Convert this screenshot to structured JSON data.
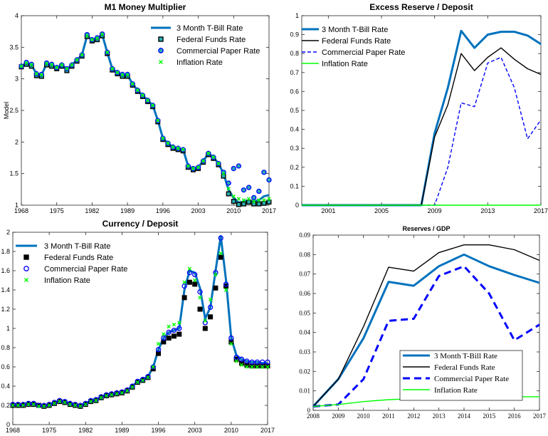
{
  "colors": {
    "tbill": "#0072BD",
    "fedfunds": "#000000",
    "cp": "#0000FF",
    "inflation": "#00FF00",
    "marker_face": "#2AAFB0"
  },
  "chart_data": [
    {
      "id": "m1",
      "type": "line",
      "title": "M1 Money Multiplier",
      "ylabel": "Model",
      "xlim": [
        1968,
        2017
      ],
      "ylim": [
        1,
        4
      ],
      "xticks": [
        1968,
        1975,
        1982,
        1989,
        1996,
        2003,
        2010,
        2017
      ],
      "yticks": [
        1,
        1.5,
        2,
        2.5,
        3,
        3.5,
        4
      ],
      "legend": {
        "position": "top-right",
        "style": "box-less"
      },
      "x": [
        1968,
        1969,
        1970,
        1971,
        1972,
        1973,
        1974,
        1975,
        1976,
        1977,
        1978,
        1979,
        1980,
        1981,
        1982,
        1983,
        1984,
        1985,
        1986,
        1987,
        1988,
        1989,
        1990,
        1991,
        1992,
        1993,
        1994,
        1995,
        1996,
        1997,
        1998,
        1999,
        2000,
        2001,
        2002,
        2003,
        2004,
        2005,
        2006,
        2007,
        2008,
        2009,
        2010,
        2011,
        2012,
        2013,
        2014,
        2015,
        2016,
        2017
      ],
      "series": [
        {
          "name": "3 Month T-Bill Rate",
          "style": "line",
          "color_key": "tbill",
          "values": [
            3.2,
            3.25,
            3.22,
            3.08,
            3.06,
            3.24,
            3.22,
            3.18,
            3.22,
            3.16,
            3.22,
            3.3,
            3.38,
            3.68,
            3.62,
            3.64,
            3.7,
            3.42,
            3.16,
            3.1,
            3.06,
            3.06,
            2.92,
            2.82,
            2.74,
            2.66,
            2.58,
            2.34,
            2.06,
            1.98,
            1.92,
            1.9,
            1.88,
            1.62,
            1.58,
            1.6,
            1.7,
            1.82,
            1.76,
            1.66,
            1.5,
            1.24,
            1.12,
            1.04,
            1.06,
            1.08,
            1.06,
            1.08,
            1.14,
            1.16
          ]
        },
        {
          "name": "Federal Funds Rate",
          "style": "square",
          "color_key": "fedfunds",
          "values": [
            3.19,
            3.23,
            3.2,
            3.05,
            3.04,
            3.22,
            3.2,
            3.16,
            3.2,
            3.13,
            3.2,
            3.28,
            3.36,
            3.67,
            3.6,
            3.62,
            3.68,
            3.4,
            3.14,
            3.08,
            3.04,
            3.04,
            2.9,
            2.8,
            2.72,
            2.64,
            2.56,
            2.32,
            2.04,
            1.96,
            1.9,
            1.88,
            1.86,
            1.6,
            1.56,
            1.58,
            1.68,
            1.8,
            1.74,
            1.64,
            1.46,
            1.18,
            1.06,
            1.01,
            1.02,
            1.05,
            1.02,
            1.02,
            1.03,
            1.05
          ]
        },
        {
          "name": "Commercial Paper Rate",
          "style": "circle",
          "color_key": "cp",
          "values": [
            3.2,
            3.26,
            3.23,
            3.08,
            3.07,
            3.25,
            3.23,
            3.18,
            3.22,
            3.16,
            3.22,
            3.3,
            3.38,
            3.7,
            3.62,
            3.65,
            3.71,
            3.42,
            3.16,
            3.1,
            3.07,
            3.07,
            2.92,
            2.82,
            2.74,
            2.66,
            2.58,
            2.34,
            2.06,
            1.98,
            1.92,
            1.9,
            1.88,
            1.62,
            1.58,
            1.6,
            1.7,
            1.82,
            1.76,
            1.66,
            1.52,
            1.35,
            1.58,
            1.62,
            1.24,
            1.28,
            1.12,
            1.22,
            1.52,
            1.4
          ]
        },
        {
          "name": "Inflation Rate",
          "style": "x",
          "color_key": "inflation",
          "values": [
            3.2,
            3.25,
            3.22,
            3.08,
            3.06,
            3.24,
            3.22,
            3.18,
            3.22,
            3.16,
            3.22,
            3.3,
            3.38,
            3.68,
            3.62,
            3.64,
            3.7,
            3.42,
            3.16,
            3.1,
            3.06,
            3.06,
            2.92,
            2.82,
            2.74,
            2.66,
            2.58,
            2.34,
            2.06,
            1.98,
            1.92,
            1.9,
            1.88,
            1.62,
            1.58,
            1.6,
            1.7,
            1.82,
            1.76,
            1.66,
            1.5,
            1.26,
            1.14,
            1.1,
            1.08,
            1.1,
            1.06,
            1.08,
            1.08,
            1.1
          ]
        }
      ]
    },
    {
      "id": "er",
      "type": "line",
      "title": "Excess Reserve / Deposit",
      "ylabel": "",
      "xlim": [
        1999,
        2017
      ],
      "ylim": [
        0,
        1
      ],
      "xticks": [
        2001,
        2005,
        2009,
        2013,
        2017
      ],
      "yticks": [
        0,
        0.1,
        0.2,
        0.3,
        0.4,
        0.5,
        0.6,
        0.7,
        0.8,
        0.9,
        1
      ],
      "legend": {
        "position": "top-left",
        "style": "box-less"
      },
      "x": [
        1999,
        2000,
        2001,
        2002,
        2003,
        2004,
        2005,
        2006,
        2007,
        2008,
        2009,
        2010,
        2011,
        2012,
        2013,
        2014,
        2015,
        2016,
        2017
      ],
      "series": [
        {
          "name": "3 Month T-Bill Rate",
          "style": "line-thick",
          "color_key": "tbill",
          "values": [
            0,
            0,
            0,
            0,
            0,
            0,
            0,
            0,
            0,
            0,
            0.38,
            0.62,
            0.92,
            0.83,
            0.9,
            0.915,
            0.915,
            0.895,
            0.85
          ]
        },
        {
          "name": "Federal Funds Rate",
          "style": "line",
          "color_key": "fedfunds",
          "values": [
            0,
            0,
            0,
            0,
            0,
            0,
            0,
            0,
            0,
            0,
            0.36,
            0.53,
            0.8,
            0.71,
            0.78,
            0.83,
            0.77,
            0.72,
            0.69
          ]
        },
        {
          "name": "Commercial Paper Rate",
          "style": "dashed",
          "color_key": "cp",
          "values": [
            0,
            0,
            0,
            0,
            0,
            0,
            0,
            0,
            0,
            0,
            0,
            0.2,
            0.54,
            0.52,
            0.75,
            0.78,
            0.62,
            0.35,
            0.45
          ]
        },
        {
          "name": "Inflation Rate",
          "style": "line",
          "color_key": "inflation",
          "values": [
            0,
            0,
            0,
            0,
            0,
            0,
            0,
            0,
            0,
            0,
            0,
            0,
            0,
            0,
            0,
            0,
            0,
            0,
            0
          ]
        }
      ]
    },
    {
      "id": "cd",
      "type": "line",
      "title": "Currency / Deposit",
      "ylabel": "",
      "xlim": [
        1968,
        2017
      ],
      "ylim": [
        0,
        2
      ],
      "xticks": [
        1968,
        1975,
        1982,
        1989,
        1996,
        2003,
        2010,
        2017
      ],
      "yticks": [
        0,
        0.2,
        0.4,
        0.6,
        0.8,
        1,
        1.2,
        1.4,
        1.6,
        1.8,
        2
      ],
      "legend": {
        "position": "top-left",
        "style": "box-less"
      },
      "x": [
        1968,
        1969,
        1970,
        1971,
        1972,
        1973,
        1974,
        1975,
        1976,
        1977,
        1978,
        1979,
        1980,
        1981,
        1982,
        1983,
        1984,
        1985,
        1986,
        1987,
        1988,
        1989,
        1990,
        1991,
        1992,
        1993,
        1994,
        1995,
        1996,
        1997,
        1998,
        1999,
        2000,
        2001,
        2002,
        2003,
        2004,
        2005,
        2006,
        2007,
        2008,
        2009,
        2010,
        2011,
        2012,
        2013,
        2014,
        2015,
        2016,
        2017
      ],
      "series": [
        {
          "name": "3 Month T-Bill Rate",
          "style": "line",
          "color_key": "tbill",
          "values": [
            0.21,
            0.2,
            0.21,
            0.22,
            0.22,
            0.2,
            0.2,
            0.21,
            0.23,
            0.25,
            0.24,
            0.22,
            0.21,
            0.2,
            0.22,
            0.25,
            0.26,
            0.29,
            0.31,
            0.32,
            0.33,
            0.34,
            0.36,
            0.4,
            0.45,
            0.47,
            0.5,
            0.6,
            0.78,
            0.9,
            0.96,
            0.98,
            1,
            1.4,
            1.6,
            1.58,
            1.42,
            1.1,
            1.22,
            1.6,
            1.96,
            1.5,
            0.9,
            0.72,
            0.68,
            0.66,
            0.65,
            0.65,
            0.64,
            0.64
          ]
        },
        {
          "name": "Federal Funds Rate",
          "style": "square",
          "color_key": "fedfunds",
          "values": [
            0.2,
            0.2,
            0.2,
            0.21,
            0.21,
            0.2,
            0.19,
            0.2,
            0.22,
            0.24,
            0.23,
            0.21,
            0.2,
            0.19,
            0.21,
            0.24,
            0.25,
            0.28,
            0.3,
            0.31,
            0.32,
            0.33,
            0.35,
            0.39,
            0.44,
            0.46,
            0.49,
            0.58,
            0.74,
            0.86,
            0.9,
            0.92,
            0.94,
            1.32,
            1.48,
            1.46,
            1.2,
            1,
            1.12,
            1.42,
            1.74,
            1.44,
            0.86,
            0.68,
            0.64,
            0.62,
            0.61,
            0.61,
            0.61,
            0.61
          ]
        },
        {
          "name": "Commercial Paper Rate",
          "style": "circle",
          "color_key": "cp",
          "values": [
            0.21,
            0.21,
            0.21,
            0.22,
            0.22,
            0.2,
            0.2,
            0.21,
            0.23,
            0.25,
            0.24,
            0.22,
            0.21,
            0.2,
            0.22,
            0.25,
            0.26,
            0.29,
            0.31,
            0.32,
            0.33,
            0.34,
            0.36,
            0.4,
            0.45,
            0.47,
            0.5,
            0.6,
            0.78,
            0.9,
            0.96,
            0.98,
            1,
            1.44,
            1.58,
            1.56,
            1.38,
            1.06,
            1.22,
            1.58,
            1.94,
            1.46,
            0.9,
            0.7,
            0.68,
            0.66,
            0.65,
            0.65,
            0.65,
            0.65
          ]
        },
        {
          "name": "Inflation Rate",
          "style": "x",
          "color_key": "inflation",
          "values": [
            0.2,
            0.2,
            0.2,
            0.21,
            0.21,
            0.19,
            0.19,
            0.2,
            0.22,
            0.24,
            0.23,
            0.21,
            0.2,
            0.19,
            0.21,
            0.24,
            0.25,
            0.28,
            0.3,
            0.31,
            0.32,
            0.33,
            0.35,
            0.39,
            0.44,
            0.46,
            0.49,
            0.6,
            0.84,
            0.94,
            1.02,
            1.04,
            1.06,
            1.48,
            1.62,
            1.5,
            1.32,
            1.08,
            1.3,
            1.56,
            1.78,
            1.4,
            0.84,
            0.66,
            0.62,
            0.6,
            0.6,
            0.6,
            0.6,
            0.6
          ]
        }
      ]
    },
    {
      "id": "rg",
      "type": "line",
      "title": "Reserves / GDP",
      "ylabel": "",
      "xlim": [
        2008,
        2017
      ],
      "ylim": [
        0,
        0.09
      ],
      "xticks": [
        2008,
        2009,
        2010,
        2011,
        2012,
        2013,
        2014,
        2015,
        2016,
        2017
      ],
      "yticks": [
        0,
        0.01,
        0.02,
        0.03,
        0.04,
        0.05,
        0.06,
        0.07,
        0.08,
        0.09
      ],
      "legend": {
        "position": "bottom-right",
        "style": "boxed"
      },
      "x": [
        2008,
        2009,
        2010,
        2011,
        2012,
        2013,
        2014,
        2015,
        2016,
        2017
      ],
      "series": [
        {
          "name": "3 Month T-Bill Rate",
          "style": "line-thick",
          "color_key": "tbill",
          "values": [
            0.002,
            0.016,
            0.037,
            0.066,
            0.064,
            0.074,
            0.08,
            0.074,
            0.0695,
            0.0655
          ]
        },
        {
          "name": "Federal Funds Rate",
          "style": "line",
          "color_key": "fedfunds",
          "values": [
            0.002,
            0.016,
            0.043,
            0.0735,
            0.0715,
            0.081,
            0.085,
            0.085,
            0.0825,
            0.077
          ]
        },
        {
          "name": "Commercial Paper Rate",
          "style": "dashed-thick",
          "color_key": "cp",
          "values": [
            0.002,
            0.003,
            0.016,
            0.046,
            0.047,
            0.069,
            0.074,
            0.06,
            0.036,
            0.044
          ]
        },
        {
          "name": "Inflation Rate",
          "style": "line",
          "color_key": "inflation",
          "values": [
            0.002,
            0.003,
            0.0045,
            0.0055,
            0.006,
            0.006,
            0.0065,
            0.0065,
            0.007,
            0.007
          ]
        }
      ]
    }
  ]
}
